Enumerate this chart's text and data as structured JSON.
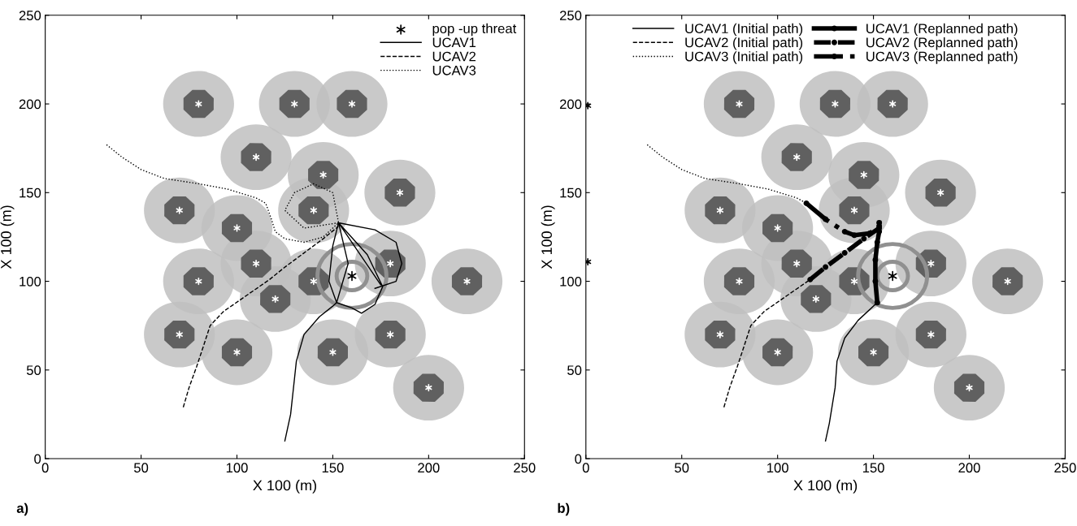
{
  "chart_data": [
    {
      "type": "line",
      "xlabel": "X 100 (m)",
      "ylabel": "X 100 (m)",
      "xlim": [
        0,
        250
      ],
      "ylim": [
        0,
        250
      ],
      "xticks": [
        0,
        50,
        100,
        150,
        200,
        250
      ],
      "yticks": [
        0,
        50,
        100,
        150,
        200,
        250
      ],
      "grid": false,
      "legend": "top right",
      "annotations": [
        "a)"
      ],
      "series": [
        {
          "type": "bubble",
          "color": "#c0c0c0",
          "x": [
            80,
            130,
            160,
            110,
            145,
            185,
            70,
            100,
            140,
            110,
            180,
            80,
            140,
            120,
            220,
            70,
            100,
            150,
            180,
            200
          ],
          "values": [
            200,
            200,
            200,
            170,
            160,
            150,
            140,
            130,
            140,
            110,
            110,
            100,
            100,
            90,
            100,
            70,
            60,
            60,
            70,
            40
          ],
          "sizes": [
            1,
            1,
            1,
            1,
            1,
            1,
            1,
            1,
            1,
            1,
            1,
            1,
            1,
            1,
            1,
            1,
            1,
            1,
            1,
            1
          ]
        },
        {
          "type": "bubble",
          "color": "#606060",
          "x": [
            80,
            130,
            160,
            110,
            145,
            185,
            70,
            100,
            140,
            110,
            180,
            80,
            140,
            120,
            220,
            70,
            100,
            150,
            180,
            200
          ],
          "values": [
            200,
            200,
            200,
            170,
            160,
            150,
            140,
            130,
            140,
            110,
            110,
            100,
            100,
            90,
            100,
            70,
            60,
            60,
            70,
            40
          ],
          "sizes": [
            0.2,
            0.2,
            0.2,
            0.2,
            0.2,
            0.2,
            0.2,
            0.2,
            0.2,
            0.2,
            0.2,
            0.2,
            0.2,
            0.2,
            0.2,
            0.2,
            0.2,
            0.2,
            0.2,
            0.2
          ]
        },
        {
          "type": "scatter",
          "color": "#ffffff",
          "marker": "cross",
          "x": [
            80,
            130,
            160,
            110,
            145,
            185,
            70,
            100,
            140,
            110,
            180,
            80,
            140,
            120,
            220,
            70,
            100,
            150,
            180,
            200
          ],
          "values": [
            200,
            200,
            200,
            170,
            160,
            150,
            140,
            130,
            140,
            110,
            110,
            100,
            100,
            90,
            100,
            70,
            60,
            60,
            70,
            40
          ]
        },
        {
          "type": "scatter",
          "name": "pop -up threat",
          "color": "#000000",
          "marker": "cross",
          "x": [
            160
          ],
          "values": [
            103
          ]
        },
        {
          "name": "UCAV1",
          "color": "#000000",
          "line_style": "solid",
          "x": [
            125,
            128,
            130,
            131,
            135,
            143,
            150,
            152,
            148,
            150,
            153,
            158,
            152,
            160,
            165,
            172,
            176,
            168,
            153,
            175,
            153,
            172,
            183,
            186,
            183,
            172
          ],
          "values": [
            10,
            25,
            45,
            55,
            70,
            80,
            86,
            88,
            100,
            120,
            133,
            110,
            88,
            85,
            82,
            87,
            97,
            115,
            133,
            98,
            133,
            129,
            122,
            110,
            100,
            96
          ]
        },
        {
          "name": "UCAV2",
          "color": "#000000",
          "line_style": "dashed",
          "x": [
            72,
            75,
            79,
            83,
            86,
            93,
            105,
            117,
            125,
            135,
            145,
            153
          ],
          "values": [
            29,
            40,
            52,
            65,
            75,
            83,
            92,
            101,
            108,
            116,
            124,
            131
          ]
        },
        {
          "name": "UCAV3",
          "color": "#000000",
          "line_style": "dotted",
          "x": [
            32,
            40,
            50,
            62,
            80,
            95,
            110,
            115,
            118,
            120,
            125,
            135,
            145,
            153,
            150,
            140,
            130,
            125,
            135,
            153
          ],
          "values": [
            177,
            170,
            163,
            158,
            155,
            152,
            147,
            144,
            135,
            128,
            124,
            122,
            125,
            133,
            150,
            155,
            150,
            140,
            130,
            133
          ]
        }
      ]
    },
    {
      "type": "line",
      "xlabel": "X 100 (m)",
      "ylabel": "X 100 (m)",
      "xlim": [
        0,
        250
      ],
      "ylim": [
        0,
        250
      ],
      "xticks": [
        0,
        50,
        100,
        150,
        200,
        250
      ],
      "yticks": [
        0,
        50,
        100,
        150,
        200,
        250
      ],
      "grid": false,
      "legend": "top",
      "annotations": [
        "b)"
      ],
      "series": [
        {
          "type": "bubble",
          "color": "#c0c0c0",
          "x": [
            80,
            130,
            160,
            110,
            145,
            185,
            70,
            100,
            140,
            110,
            180,
            80,
            140,
            120,
            220,
            70,
            100,
            150,
            180,
            200
          ],
          "values": [
            200,
            200,
            200,
            170,
            160,
            150,
            140,
            130,
            140,
            110,
            110,
            100,
            100,
            90,
            100,
            70,
            60,
            60,
            70,
            40
          ],
          "sizes": [
            1,
            1,
            1,
            1,
            1,
            1,
            1,
            1,
            1,
            1,
            1,
            1,
            1,
            1,
            1,
            1,
            1,
            1,
            1,
            1
          ]
        },
        {
          "type": "bubble",
          "color": "#606060",
          "x": [
            80,
            130,
            160,
            110,
            145,
            185,
            70,
            100,
            140,
            110,
            180,
            80,
            140,
            120,
            220,
            70,
            100,
            150,
            180,
            200
          ],
          "values": [
            200,
            200,
            200,
            170,
            160,
            150,
            140,
            130,
            140,
            110,
            110,
            100,
            100,
            90,
            100,
            70,
            60,
            60,
            70,
            40
          ],
          "sizes": [
            0.2,
            0.2,
            0.2,
            0.2,
            0.2,
            0.2,
            0.2,
            0.2,
            0.2,
            0.2,
            0.2,
            0.2,
            0.2,
            0.2,
            0.2,
            0.2,
            0.2,
            0.2,
            0.2,
            0.2
          ]
        },
        {
          "type": "scatter",
          "color": "#ffffff",
          "marker": "cross",
          "x": [
            80,
            130,
            160,
            110,
            145,
            185,
            70,
            100,
            140,
            110,
            180,
            80,
            140,
            120,
            220,
            70,
            100,
            150,
            180,
            200
          ],
          "values": [
            200,
            200,
            200,
            170,
            160,
            150,
            140,
            130,
            140,
            110,
            110,
            100,
            100,
            90,
            100,
            70,
            60,
            60,
            70,
            40
          ]
        },
        {
          "type": "scatter",
          "color": "#000000",
          "marker": "cross",
          "x": [
            160
          ],
          "values": [
            103
          ]
        },
        {
          "type": "scatter",
          "color": "#000000",
          "marker": "cross",
          "x": [
            1,
            1
          ],
          "values": [
            199,
            111
          ]
        },
        {
          "name": "UCAV1 (Initial path)",
          "color": "#000000",
          "line_style": "solid",
          "x": [
            125,
            127,
            130,
            131,
            135,
            142,
            152
          ],
          "values": [
            10,
            20,
            40,
            55,
            68,
            78,
            88
          ]
        },
        {
          "name": "UCAV2 (Initial path)",
          "color": "#000000",
          "line_style": "dashed",
          "x": [
            72,
            75,
            79,
            83,
            86,
            93,
            105,
            117
          ],
          "values": [
            29,
            40,
            52,
            65,
            75,
            83,
            92,
            101
          ]
        },
        {
          "name": "UCAV3 (Initial path)",
          "color": "#000000",
          "line_style": "dotted",
          "x": [
            32,
            40,
            50,
            62,
            80,
            95,
            110,
            115
          ],
          "values": [
            177,
            170,
            163,
            158,
            155,
            152,
            147,
            144
          ]
        },
        {
          "name": "UCAV1 (Replanned path)",
          "color": "#000000",
          "line_style": "solid",
          "marker": "circle",
          "x": [
            152,
            151,
            151,
            152,
            153,
            153
          ],
          "values": [
            88,
            100,
            112,
            122,
            128,
            133
          ]
        },
        {
          "name": "UCAV2 (Replanned path)",
          "color": "#000000",
          "line_style": "dashed",
          "marker": "circle",
          "x": [
            117,
            125,
            135,
            145,
            153
          ],
          "values": [
            101,
            108,
            116,
            124,
            130
          ]
        },
        {
          "name": "UCAV3 (Replanned path)",
          "color": "#000000",
          "line_style": "dashdot",
          "marker": "circle",
          "x": [
            115,
            125,
            135,
            140,
            148,
            153
          ],
          "values": [
            144,
            135,
            128,
            126,
            127,
            131
          ]
        }
      ]
    }
  ]
}
